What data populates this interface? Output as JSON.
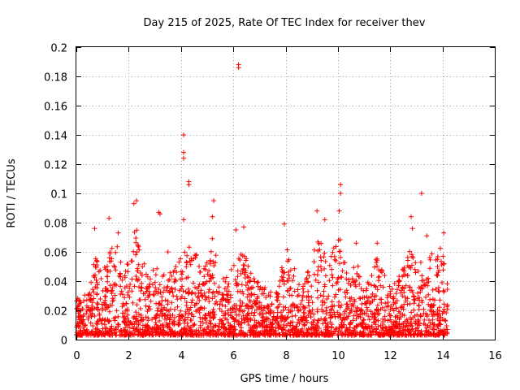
{
  "chart_data": {
    "type": "scatter",
    "title": "Day 215 of 2025, Rate Of TEC Index for receiver thev",
    "xlabel": "GPS time / hours",
    "ylabel": "ROTI / TECUs",
    "xlim": [
      0,
      16
    ],
    "ylim": [
      0,
      0.2
    ],
    "xticks": [
      0,
      2,
      4,
      6,
      8,
      10,
      12,
      14,
      16
    ],
    "yticks": [
      0,
      0.02,
      0.04,
      0.06,
      0.08,
      0.1,
      0.12,
      0.14,
      0.16,
      0.18,
      0.2
    ],
    "xtick_labels": [
      "0",
      "2",
      "4",
      "6",
      "8",
      "10",
      "12",
      "14",
      "16"
    ],
    "ytick_labels": [
      "0",
      "0.02",
      "0.04",
      "0.06",
      "0.08",
      "0.1",
      "0.12",
      "0.14",
      "0.16",
      "0.18",
      "0.2"
    ],
    "grid": true,
    "marker": "+",
    "color": "#ff0000",
    "data_coverage_hours": [
      0,
      14.2
    ],
    "notable_points": [
      {
        "x": 6.2,
        "y": 0.188
      },
      {
        "x": 6.2,
        "y": 0.186
      },
      {
        "x": 4.1,
        "y": 0.14
      },
      {
        "x": 4.1,
        "y": 0.128
      },
      {
        "x": 4.1,
        "y": 0.124
      },
      {
        "x": 4.3,
        "y": 0.108
      },
      {
        "x": 4.3,
        "y": 0.106
      },
      {
        "x": 10.1,
        "y": 0.106
      },
      {
        "x": 10.1,
        "y": 0.1
      },
      {
        "x": 13.2,
        "y": 0.1
      },
      {
        "x": 5.25,
        "y": 0.095
      },
      {
        "x": 2.3,
        "y": 0.095
      },
      {
        "x": 2.2,
        "y": 0.093
      },
      {
        "x": 9.2,
        "y": 0.088
      },
      {
        "x": 10.05,
        "y": 0.088
      },
      {
        "x": 3.15,
        "y": 0.087
      },
      {
        "x": 3.2,
        "y": 0.086
      },
      {
        "x": 12.8,
        "y": 0.084
      },
      {
        "x": 1.25,
        "y": 0.083
      },
      {
        "x": 5.2,
        "y": 0.084
      },
      {
        "x": 4.1,
        "y": 0.082
      },
      {
        "x": 9.5,
        "y": 0.082
      },
      {
        "x": 7.95,
        "y": 0.079
      },
      {
        "x": 6.4,
        "y": 0.077
      },
      {
        "x": 0.7,
        "y": 0.076
      },
      {
        "x": 6.1,
        "y": 0.075
      },
      {
        "x": 12.85,
        "y": 0.076
      },
      {
        "x": 1.6,
        "y": 0.073
      },
      {
        "x": 14.05,
        "y": 0.073
      },
      {
        "x": 13.4,
        "y": 0.071
      },
      {
        "x": 10.7,
        "y": 0.066
      },
      {
        "x": 11.5,
        "y": 0.066
      },
      {
        "x": 3.5,
        "y": 0.06
      }
    ],
    "envelope": [
      {
        "x": 0.0,
        "y": 0.028
      },
      {
        "x": 0.3,
        "y": 0.03
      },
      {
        "x": 0.5,
        "y": 0.035
      },
      {
        "x": 0.7,
        "y": 0.06
      },
      {
        "x": 0.9,
        "y": 0.048
      },
      {
        "x": 1.1,
        "y": 0.05
      },
      {
        "x": 1.3,
        "y": 0.07
      },
      {
        "x": 1.6,
        "y": 0.065
      },
      {
        "x": 1.8,
        "y": 0.045
      },
      {
        "x": 2.0,
        "y": 0.055
      },
      {
        "x": 2.25,
        "y": 0.08
      },
      {
        "x": 2.5,
        "y": 0.06
      },
      {
        "x": 2.8,
        "y": 0.045
      },
      {
        "x": 3.0,
        "y": 0.05
      },
      {
        "x": 3.3,
        "y": 0.045
      },
      {
        "x": 3.6,
        "y": 0.05
      },
      {
        "x": 3.9,
        "y": 0.055
      },
      {
        "x": 4.1,
        "y": 0.07
      },
      {
        "x": 4.3,
        "y": 0.065
      },
      {
        "x": 4.6,
        "y": 0.058
      },
      {
        "x": 4.9,
        "y": 0.048
      },
      {
        "x": 5.2,
        "y": 0.07
      },
      {
        "x": 5.5,
        "y": 0.048
      },
      {
        "x": 5.8,
        "y": 0.045
      },
      {
        "x": 6.1,
        "y": 0.055
      },
      {
        "x": 6.4,
        "y": 0.065
      },
      {
        "x": 6.7,
        "y": 0.045
      },
      {
        "x": 7.0,
        "y": 0.04
      },
      {
        "x": 7.3,
        "y": 0.035
      },
      {
        "x": 7.6,
        "y": 0.03
      },
      {
        "x": 7.85,
        "y": 0.055
      },
      {
        "x": 8.1,
        "y": 0.065
      },
      {
        "x": 8.4,
        "y": 0.045
      },
      {
        "x": 8.7,
        "y": 0.04
      },
      {
        "x": 9.0,
        "y": 0.06
      },
      {
        "x": 9.3,
        "y": 0.07
      },
      {
        "x": 9.6,
        "y": 0.055
      },
      {
        "x": 9.9,
        "y": 0.065
      },
      {
        "x": 10.1,
        "y": 0.075
      },
      {
        "x": 10.4,
        "y": 0.04
      },
      {
        "x": 10.7,
        "y": 0.055
      },
      {
        "x": 11.0,
        "y": 0.04
      },
      {
        "x": 11.3,
        "y": 0.045
      },
      {
        "x": 11.5,
        "y": 0.058
      },
      {
        "x": 11.8,
        "y": 0.045
      },
      {
        "x": 12.1,
        "y": 0.04
      },
      {
        "x": 12.4,
        "y": 0.045
      },
      {
        "x": 12.7,
        "y": 0.06
      },
      {
        "x": 12.9,
        "y": 0.065
      },
      {
        "x": 13.2,
        "y": 0.055
      },
      {
        "x": 13.5,
        "y": 0.06
      },
      {
        "x": 13.8,
        "y": 0.06
      },
      {
        "x": 14.0,
        "y": 0.065
      },
      {
        "x": 14.2,
        "y": 0.05
      }
    ]
  }
}
